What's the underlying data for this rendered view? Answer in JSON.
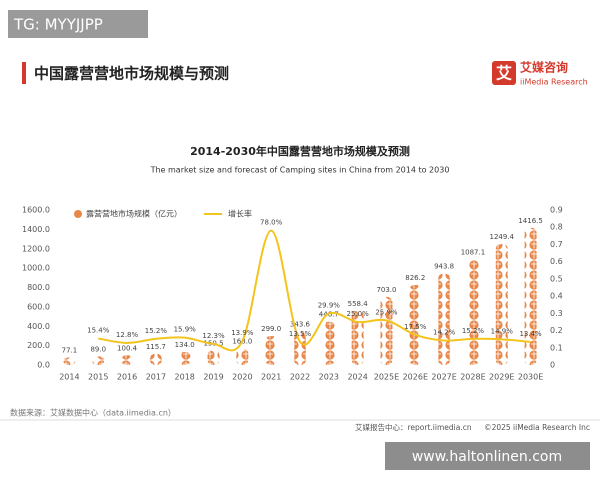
{
  "watermark_top": "TG: MYYJJPP",
  "header": {
    "title": "中国露营营地市场规模与预测",
    "logo_cn": "艾媒咨询",
    "logo_en": "iiMedia Research",
    "logo_icon": "艾"
  },
  "chart_data": {
    "type": "bar_line",
    "title": "2014-2030年中国露营营地市场规模及预测",
    "subtitle": "The market size and forecast of Camping sites in China from 2014 to 2030",
    "categories": [
      "2014",
      "2015",
      "2016",
      "2017",
      "2018",
      "2019",
      "2020",
      "2021",
      "2022",
      "2023",
      "2024",
      "2025E",
      "2026E",
      "2027E",
      "2028E",
      "2029E",
      "2030E"
    ],
    "series": [
      {
        "name": "露营营地市场规模（亿元）",
        "color": "#e8874a",
        "kind": "bar",
        "values": [
          77.1,
          89.0,
          100.4,
          115.7,
          134.0,
          150.5,
          168.0,
          299.0,
          343.6,
          446.7,
          558.4,
          703.0,
          826.2,
          943.8,
          1087.1,
          1249.4,
          1416.5
        ],
        "value_labels": [
          "77.1",
          "89.0",
          "100.4",
          "115.7",
          "134.0",
          "150.5",
          "168.0",
          "299.0",
          "343.6",
          "446.7",
          "558.4",
          "703.0",
          "826.2",
          "943.8",
          "1087.1",
          "1249.4",
          "1416.5"
        ]
      },
      {
        "name": "增长率",
        "color": "#f3c41d",
        "kind": "line",
        "axis": "y2",
        "values": [
          null,
          0.154,
          0.128,
          0.152,
          0.159,
          0.123,
          0.139,
          0.78,
          0.135,
          0.299,
          0.25,
          0.259,
          0.175,
          0.142,
          0.152,
          0.149,
          0.134
        ],
        "value_labels": [
          null,
          "15.4%",
          "12.8%",
          "15.2%",
          "15.9%",
          "12.3%",
          "13.9%",
          "78.0%",
          "13.5%",
          "29.9%",
          "25.0%",
          "25.9%",
          "17.5%",
          "14.2%",
          "15.2%",
          "14.9%",
          "13.4%"
        ]
      }
    ],
    "ylim": [
      0,
      1600
    ],
    "yticks": [
      {
        "value": 0,
        "label": "0.0"
      },
      {
        "value": 200,
        "label": "200.0"
      },
      {
        "value": 400,
        "label": "400.0"
      },
      {
        "value": 600,
        "label": "600.0"
      },
      {
        "value": 800,
        "label": "800.0"
      },
      {
        "value": 1000,
        "label": "1000.0"
      },
      {
        "value": 1200,
        "label": "1200.0"
      },
      {
        "value": 1400,
        "label": "1400.0"
      },
      {
        "value": 1600,
        "label": "1600.0"
      }
    ],
    "y2lim": [
      0,
      0.9
    ],
    "y2ticks": [
      0,
      0.1,
      0.2,
      0.3,
      0.4,
      0.5,
      0.6,
      0.7,
      0.8,
      0.9
    ],
    "grid": false,
    "legend": "top-left"
  },
  "source": "数据来源：艾媒数据中心（data.iimedia.cn）",
  "footer": {
    "report": "艾媒报告中心：report.iimedia.cn",
    "copyright": "©2025  iiMedia Research  Inc"
  },
  "watermark_bottom": "www.haltonlinen.com"
}
